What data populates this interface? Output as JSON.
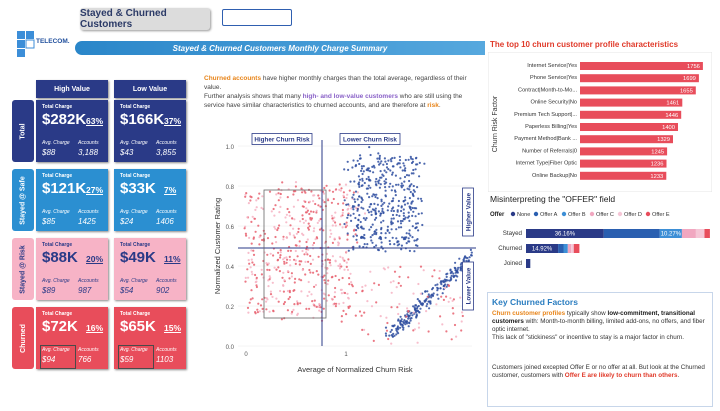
{
  "header": {
    "logo_text": "TELECOM.",
    "tab_active": "Stayed & Churned Customers",
    "tab_empty": "",
    "banner": "Stayed & Churned Customers Monthly Charge Summary"
  },
  "kpi": {
    "col_high": "High Value",
    "col_low": "Low Value",
    "total_charge_label": "Total Charge",
    "avg_label": "Avg. Charge",
    "accounts_label": "Accounts",
    "rows": [
      {
        "label": "Total",
        "color": "#2a3a87",
        "high": {
          "total": "$282K",
          "pct": "63%",
          "avg": "$88",
          "accounts": "3,188"
        },
        "low": {
          "total": "$166K",
          "pct": "37%",
          "avg": "$43",
          "accounts": "3,855"
        }
      },
      {
        "label": "Stayed @ Safe",
        "color": "#2b8fd1",
        "high": {
          "total": "$121K",
          "pct": "27%",
          "avg": "$85",
          "accounts": "1425"
        },
        "low": {
          "total": "$33K",
          "pct": "7%",
          "avg": "$24",
          "accounts": "1406"
        }
      },
      {
        "label": "Stayed @ Risk",
        "color": "#f7b3c6",
        "high": {
          "total": "$88K",
          "pct": "20%",
          "avg": "$89",
          "accounts": "987"
        },
        "low": {
          "total": "$49K",
          "pct": "11%",
          "avg": "$54",
          "accounts": "902"
        }
      },
      {
        "label": "Churned",
        "color": "#e84d5b",
        "high": {
          "total": "$72K",
          "pct": "16%",
          "avg": "$94",
          "accounts": "766"
        },
        "low": {
          "total": "$65K",
          "pct": "15%",
          "avg": "$59",
          "accounts": "1103"
        }
      }
    ]
  },
  "info": {
    "p1_a": "Churned accounts",
    "p1_b": " have higher monthly charges than the total average, regardless of their value.",
    "p2_a": "Further analysis shows that many ",
    "p2_b": "high- and low-value customers",
    "p2_c": " who are still using the service have similar characteristics to churned accounts, and are therefore at ",
    "p2_d": "risk",
    "p2_e": "."
  },
  "scatter": {
    "xlabel": "Average of Normalized Churn Risk",
    "ylabel": "Normalized Customer Rating",
    "label_high_risk": "Higher Churn Risk",
    "label_low_risk": "Lower Churn Risk",
    "label_higher_value": "Higher Value",
    "label_lower_value": "Lower Value",
    "y_ticks": [
      "1.0",
      "0.8",
      "0.6",
      "0.4",
      "0.2",
      "0.0"
    ],
    "x_ticks": [
      "0",
      "1"
    ],
    "colors": {
      "red": "#e8606e",
      "pink": "#f6b3c3",
      "blue": "#2e4ea0"
    }
  },
  "chart_data": [
    {
      "type": "bar",
      "title": "The top 10 churn customer profile characteristics",
      "ylabel": "Churn Risk Factor",
      "categories": [
        "Internet Service|Yes",
        "Phone Service|Yes",
        "Contract|Month-to-Mo...",
        "Online Security|No",
        "Premium Tech Support|...",
        "Paperless Billing|Yes",
        "Payment Method|Bank ...",
        "Number of Referrals|0",
        "Internet Type|Fiber Optic",
        "Online Backup|No"
      ],
      "values": [
        1756,
        1699,
        1655,
        1461,
        1446,
        1400,
        1329,
        1245,
        1236,
        1233
      ],
      "color": "#e84d5b"
    },
    {
      "type": "bar",
      "title": "Misinterpreting the \"OFFER\" field",
      "legend_title": "Offer",
      "series_names": [
        "None",
        "Offer A",
        "Offer B",
        "Offer C",
        "Offer D",
        "Offer E"
      ],
      "series_colors": [
        "#2a3a87",
        "#2a5fb0",
        "#3d8fd6",
        "#f1a7c0",
        "#f5c6d6",
        "#e84d5b"
      ],
      "categories": [
        "Stayed",
        "Churned",
        "Joined"
      ],
      "values_pct": [
        [
          36.16,
          26.0,
          10.27,
          6.5,
          4.0,
          2.5
        ],
        [
          14.92,
          2.5,
          2.0,
          1.6,
          1.2,
          2.6
        ],
        [
          2.0,
          0,
          0,
          0,
          0,
          0
        ]
      ],
      "labels": [
        [
          "36.16%",
          "",
          "10.27%",
          "",
          "",
          ""
        ],
        [
          "14.92%",
          "",
          "",
          "",
          "",
          ""
        ],
        [
          "",
          "",
          "",
          "",
          "",
          ""
        ]
      ]
    }
  ],
  "kcf": {
    "title": "Key Churned Factors",
    "p1_a": "Churn customer profiles",
    "p1_b": " typically show ",
    "p1_c": "low-commitment, transitional customers",
    "p1_d": " with: Month-to-month billing, limited add-ons, no offers, and fiber optic internet.",
    "p1_e": "This lack of \"stickiness\" or incentive to stay is a major factor in churn.",
    "p2_a": "Customers joined excepted Offer E or no offer at all. But look at the Churned customer, customers with ",
    "p2_b": "Offer E are likely to churn than others",
    "p2_c": "."
  }
}
